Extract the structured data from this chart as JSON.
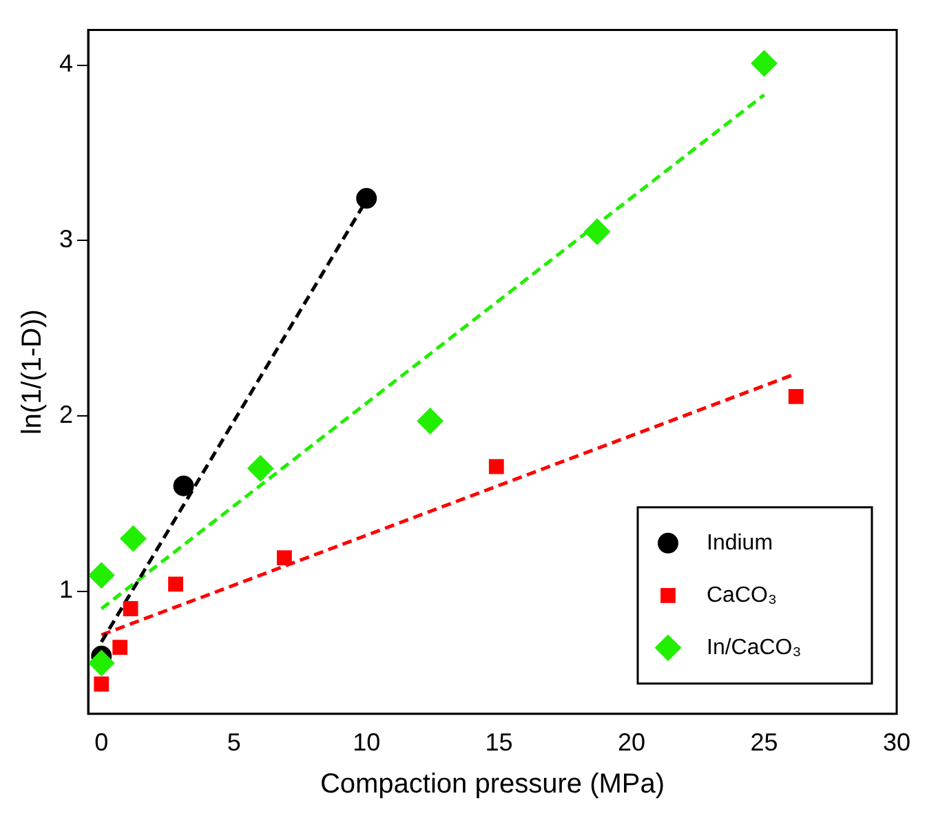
{
  "chart_data": {
    "type": "scatter",
    "xlabel": "Compaction pressure (MPa)",
    "ylabel": "ln(1/(1-D))",
    "xlim": [
      -0.5,
      30
    ],
    "ylim": [
      0.3,
      4.2
    ],
    "xticks": [
      0,
      5,
      10,
      15,
      20,
      25,
      30
    ],
    "yticks": [
      1,
      2,
      3,
      4
    ],
    "grid": false,
    "legend": "bottom right",
    "series": [
      {
        "name": "Indium",
        "color": "#000000",
        "marker": "circle",
        "x": [
          0,
          3.1,
          10
        ],
        "values": [
          0.63,
          1.6,
          3.24
        ]
      },
      {
        "name": "CaCO₃",
        "color": "#ff0000",
        "marker": "square",
        "x": [
          0,
          0.7,
          1.1,
          2.8,
          6.9,
          14.9,
          26.2
        ],
        "values": [
          0.47,
          0.68,
          0.9,
          1.04,
          1.19,
          1.71,
          2.11
        ]
      },
      {
        "name": "In/CaCO₃",
        "color": "#22ee00",
        "marker": "diamond",
        "x": [
          0,
          0,
          1.2,
          6,
          12.4,
          18.7,
          25
        ],
        "values": [
          0.59,
          1.09,
          1.3,
          1.7,
          1.97,
          3.05,
          4.01
        ]
      },
      {
        "type": "line",
        "color": "#000000",
        "line_style": "dashed",
        "marker": "none",
        "x": [
          0,
          10
        ],
        "values": [
          0.71,
          3.23
        ]
      },
      {
        "type": "line",
        "color": "#ff0000",
        "line_style": "dashed",
        "marker": "none",
        "x": [
          0,
          26.2
        ],
        "values": [
          0.75,
          2.24
        ]
      },
      {
        "type": "line",
        "color": "#22ee00",
        "line_style": "dashed",
        "marker": "none",
        "x": [
          0,
          25
        ],
        "values": [
          0.9,
          3.83
        ]
      }
    ]
  }
}
